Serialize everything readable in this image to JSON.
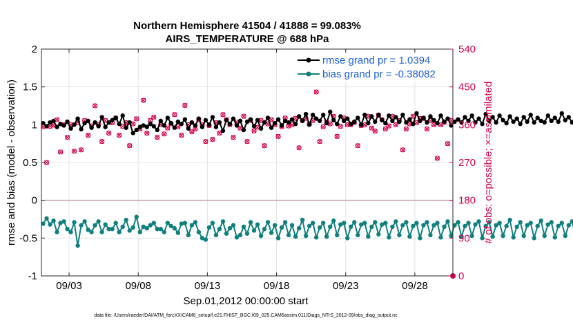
{
  "chart_data": {
    "type": "line",
    "title_line1": "Northern Hemisphere 41504 / 41888 = 99.083%",
    "title_line2": "AIRS_TEMPERATURE @ 688 hPa",
    "xlabel": "Sep.01,2012 00:00:00 start",
    "ylabel_left": "rmse and bias (model - observation)",
    "ylabel_right": "# of obs: o=possible; ×=assimilated",
    "footer": "data file: /Users/raeder/DAI/ATM_forcXX/CAM6_setup/f.e21.FHIST_BGC.f09_025.CAM6assim.011/Diags_NTrS_2012-09/obs_diag_output.nc",
    "x_ticks": [
      "09/03",
      "09/08",
      "09/13",
      "09/18",
      "09/23",
      "09/28"
    ],
    "x_tick_days": [
      3,
      8,
      13,
      18,
      23,
      28
    ],
    "xlim": [
      1.0,
      30.75
    ],
    "ylim_left": [
      -1,
      2
    ],
    "y_ticks_left": [
      "-1",
      "-0.5",
      "0",
      "0.5",
      "1",
      "1.5",
      "2"
    ],
    "y_tick_values_left": [
      -1,
      -0.5,
      0,
      0.5,
      1,
      1.5,
      2
    ],
    "ylim_right": [
      0,
      540
    ],
    "y_ticks_right": [
      "0",
      "90",
      "180",
      "270",
      "360",
      "450",
      "540"
    ],
    "y_tick_values_right": [
      0,
      90,
      180,
      270,
      360,
      450,
      540
    ],
    "step_days": 0.25,
    "start_day": 1.125,
    "legend": {
      "rmse": "rmse grand pr = 1.0394",
      "bias": "bias grand pr = -0.38082"
    },
    "colors": {
      "rmse": "#000000",
      "bias": "#0f7f7f",
      "obs": "#d6004f",
      "legend_text": "#1f5fd6",
      "zero_line": "#c8a0a8",
      "grid": "#e3e3e3"
    },
    "series": [
      {
        "name": "rmse",
        "values": [
          1.02,
          0.98,
          1.03,
          1.05,
          0.97,
          1.01,
          0.99,
          1.04,
          0.95,
          1.0,
          1.08,
          0.94,
          1.02,
          1.05,
          0.96,
          1.03,
          0.98,
          1.1,
          0.97,
          1.03,
          1.06,
          1.09,
          1.01,
          1.12,
          0.96,
          1.03,
          0.89,
          0.93,
          0.97,
          0.99,
          0.97,
          1.01,
          0.98,
          0.93,
          1.05,
          0.99,
          1.09,
          1.02,
          0.96,
          1.04,
          1.01,
          1.07,
          0.95,
          1.03,
          0.99,
          1.08,
          0.97,
          1.06,
          1.0,
          1.1,
          0.97,
          1.03,
          0.92,
          1.06,
          1.01,
          1.08,
          0.99,
          1.05,
          0.93,
          1.04,
          1.07,
          0.98,
          1.06,
          0.95,
          1.03,
          1.09,
          0.96,
          1.02,
          1.07,
          0.99,
          1.05,
          1.03,
          1.07,
          1.01,
          1.11,
          1.05,
          1.14,
          1.0,
          1.13,
          1.08,
          1.05,
          1.13,
          1.02,
          1.17,
          1.06,
          1.01,
          1.11,
          1.05,
          1.08,
          1.01,
          1.04,
          1.09,
          1.0,
          1.13,
          1.02,
          1.11,
          1.04,
          1.13,
          1.06,
          1.02,
          1.12,
          1.05,
          1.1,
          1.04,
          1.13,
          1.03,
          1.07,
          1.01,
          1.15,
          1.05,
          1.09,
          1.03,
          1.11,
          1.06,
          1.02,
          1.12,
          1.04,
          1.08,
          0.99,
          1.04,
          1.07,
          1.03,
          1.1,
          1.05,
          1.12,
          1.03,
          1.08,
          1.01,
          1.14,
          1.05,
          1.1,
          1.03,
          1.12,
          1.06,
          1.02,
          1.11,
          1.04,
          1.08,
          1.01,
          1.1,
          1.04,
          1.13,
          1.03,
          1.09,
          1.05,
          1.03,
          1.12,
          1.05,
          1.09,
          1.04,
          1.15,
          1.06,
          1.1,
          1.03,
          1.12,
          1.05,
          1.13,
          1.04,
          1.09,
          1.0,
          1.07,
          1.04,
          1.02,
          1.1,
          0.98,
          1.06,
          1.03,
          1.1,
          1.01,
          1.04,
          0.98,
          1.03,
          1.08,
          1.01,
          1.05,
          0.99,
          1.07,
          1.04,
          1.02,
          1.05,
          1.03,
          1.08,
          1.04,
          1.0,
          1.06,
          1.02,
          1.09,
          1.03,
          1.06,
          1.01,
          1.04,
          1.07,
          1.02,
          1.05,
          1.03,
          1.08,
          1.04,
          1.01,
          1.06,
          1.03,
          1.07,
          1.02,
          1.05,
          1.04,
          1.0,
          1.06,
          1.03,
          1.07,
          1.01,
          1.04,
          1.06,
          1.02,
          1.07,
          1.03,
          1.05,
          1.01,
          1.06,
          1.03,
          1.08,
          1.02,
          1.05,
          1.04,
          1.01,
          1.06,
          1.03,
          1.08,
          1.05,
          1.02,
          1.06,
          1.04,
          1.02
        ]
      },
      {
        "name": "bias",
        "values": [
          -0.31,
          -0.24,
          -0.32,
          -0.27,
          -0.42,
          -0.3,
          -0.28,
          -0.38,
          -0.42,
          -0.29,
          -0.6,
          -0.33,
          -0.28,
          -0.39,
          -0.42,
          -0.33,
          -0.28,
          -0.42,
          -0.32,
          -0.38,
          -0.38,
          -0.3,
          -0.42,
          -0.35,
          -0.26,
          -0.4,
          -0.36,
          -0.22,
          -0.42,
          -0.35,
          -0.37,
          -0.33,
          -0.3,
          -0.38,
          -0.38,
          -0.42,
          -0.3,
          -0.34,
          -0.37,
          -0.43,
          -0.31,
          -0.3,
          -0.46,
          -0.33,
          -0.29,
          -0.42,
          -0.5,
          -0.52,
          -0.36,
          -0.3,
          -0.46,
          -0.38,
          -0.28,
          -0.44,
          -0.37,
          -0.33,
          -0.49,
          -0.46,
          -0.35,
          -0.44,
          -0.29,
          -0.4,
          -0.32,
          -0.47,
          -0.38,
          -0.29,
          -0.43,
          -0.33,
          -0.5,
          -0.36,
          -0.29,
          -0.46,
          -0.33,
          -0.48,
          -0.37,
          -0.26,
          -0.47,
          -0.34,
          -0.3,
          -0.49,
          -0.36,
          -0.3,
          -0.48,
          -0.35,
          -0.27,
          -0.46,
          -0.32,
          -0.3,
          -0.5,
          -0.35,
          -0.29,
          -0.46,
          -0.32,
          -0.3,
          -0.48,
          -0.35,
          -0.29,
          -0.45,
          -0.32,
          -0.3,
          -0.49,
          -0.35,
          -0.28,
          -0.46,
          -0.33,
          -0.29,
          -0.48,
          -0.34,
          -0.3,
          -0.5,
          -0.33,
          -0.29,
          -0.46,
          -0.33,
          -0.3,
          -0.49,
          -0.35,
          -0.28,
          -0.47,
          -0.33,
          -0.29,
          -0.48,
          -0.34,
          -0.3,
          -0.47,
          -0.32,
          -0.28,
          -0.5,
          -0.34,
          -0.29,
          -0.48,
          -0.33,
          -0.3,
          -0.47,
          -0.34,
          -0.26,
          -0.49,
          -0.35,
          -0.29,
          -0.47,
          -0.33,
          -0.3,
          -0.5,
          -0.34,
          -0.27,
          -0.47,
          -0.32,
          -0.29,
          -0.49,
          -0.34,
          -0.3,
          -0.47,
          -0.33,
          -0.28,
          -0.49,
          -0.34,
          -0.26,
          -0.56,
          -0.35,
          -0.29,
          -0.47,
          -0.33,
          -0.28,
          -0.49,
          -0.34,
          -0.3,
          -0.47,
          -0.33,
          -0.31,
          -0.49,
          -0.34,
          -0.29,
          -0.5,
          -0.33,
          -0.3,
          -0.47,
          -0.34,
          -0.28,
          -0.49,
          -0.33,
          -0.29,
          -0.48,
          -0.34,
          -0.28,
          -0.47,
          -0.33,
          -0.3,
          -0.5,
          -0.34,
          -0.29,
          -0.47,
          -0.32,
          -0.28,
          -0.49,
          -0.34,
          -0.3,
          -0.47,
          -0.32,
          -0.29,
          -0.5,
          -0.34,
          -0.28,
          -0.47,
          -0.33,
          -0.3,
          -0.49,
          -0.34,
          -0.29,
          -0.47,
          -0.33,
          -0.28,
          -0.48,
          -0.34,
          -0.3,
          -0.46,
          -0.33,
          -0.29,
          -0.5,
          -0.34,
          -0.15,
          -0.48,
          -0.32,
          -0.3,
          -0.49,
          -0.35,
          -0.28,
          -0.47,
          -0.33,
          -0.28
        ]
      },
      {
        "name": "obs_possible_and_assimilated",
        "values": [
          355,
          270,
          356,
          359,
          372,
          295,
          360,
          330,
          360,
          297,
          366,
          300,
          370,
          335,
          357,
          405,
          360,
          320,
          370,
          340,
          365,
          376,
          335,
          356,
          365,
          310,
          362,
          374,
          350,
          418,
          340,
          370,
          378,
          330,
          360,
          338,
          352,
          362,
          384,
          355,
          335,
          406,
          360,
          343,
          350,
          372,
          360,
          320,
          358,
          325,
          365,
          340,
          384,
          372,
          360,
          330,
          366,
          352,
          380,
          320,
          370,
          345,
          354,
          370,
          310,
          362,
          372,
          360,
          332,
          355,
          376,
          357,
          360,
          375,
          305,
          370,
          375,
          362,
          370,
          438,
          320,
          355,
          366,
          362,
          380,
          332,
          356,
          376,
          360,
          360,
          365,
          310,
          358,
          360,
          380,
          352,
          345,
          383,
          372,
          350,
          357,
          380,
          360,
          370,
          300,
          350,
          362,
          380,
          365,
          375,
          375,
          350,
          370,
          360,
          280,
          360,
          366,
          315,
          370,
          342,
          360,
          378,
          355,
          325,
          372,
          366,
          360,
          305,
          360,
          360,
          370,
          340,
          357,
          376,
          358,
          375,
          360,
          374,
          360,
          350,
          378,
          355,
          372,
          245,
          370,
          355,
          360,
          380,
          330,
          375,
          355,
          355,
          356,
          372,
          310,
          368,
          350,
          376,
          360,
          380,
          330,
          370,
          360,
          325,
          372,
          356,
          338,
          380,
          360,
          372,
          355,
          360,
          352,
          370,
          300,
          376,
          360,
          380,
          316,
          355,
          356,
          372,
          333,
          360,
          338,
          360,
          380,
          358,
          376,
          354,
          380,
          360,
          302,
          376,
          365,
          350,
          378,
          360,
          320,
          366,
          350,
          378,
          360,
          312,
          356,
          370,
          345,
          380,
          358,
          330,
          360,
          372,
          360,
          350,
          376,
          360,
          340,
          358,
          367,
          376,
          360,
          360,
          357,
          372,
          360,
          356,
          358
        ]
      }
    ]
  }
}
